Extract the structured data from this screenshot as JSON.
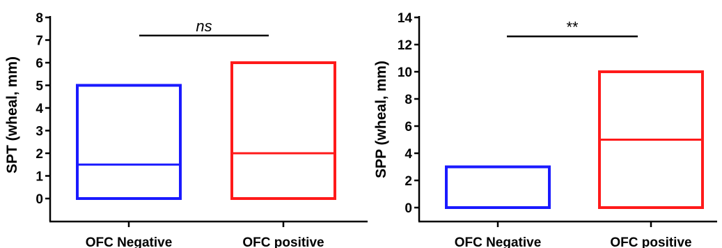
{
  "chart_data": [
    {
      "type": "box",
      "ylabel": "SPT (wheal, mm)",
      "ylim": [
        0,
        8
      ],
      "yticks": [
        "0",
        "1",
        "2",
        "3",
        "4",
        "5",
        "6",
        "7",
        "8"
      ],
      "categories": [
        "OFC Negative",
        "OFC positive"
      ],
      "colors": [
        "#1a1aff",
        "#ff1a1a"
      ],
      "boxes": [
        {
          "min": 0,
          "max": 5,
          "median": 1.5
        },
        {
          "min": 0,
          "max": 6,
          "median": 2
        }
      ],
      "significance": {
        "text": "ns",
        "italic": true,
        "level": 7.2
      }
    },
    {
      "type": "box",
      "ylabel": "SPP (wheal, mm)",
      "ylim": [
        0,
        14
      ],
      "yticks": [
        "0",
        "2",
        "4",
        "6",
        "8",
        "10",
        "12",
        "14"
      ],
      "categories": [
        "OFC Negative",
        "OFC positive"
      ],
      "colors": [
        "#1a1aff",
        "#ff1a1a"
      ],
      "boxes": [
        {
          "min": 0,
          "max": 3,
          "median": 0
        },
        {
          "min": 0,
          "max": 10,
          "median": 5
        }
      ],
      "significance": {
        "text": "**",
        "italic": false,
        "level": 12.6
      }
    }
  ]
}
